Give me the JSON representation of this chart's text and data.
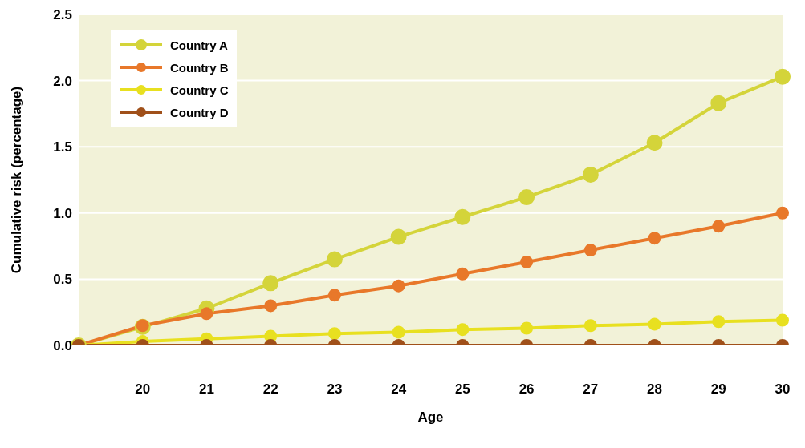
{
  "chart_data": {
    "type": "line",
    "xlabel": "Age",
    "ylabel": "Cumulative risk (percentage)",
    "categories": [
      null,
      "20",
      "21",
      "22",
      "23",
      "24",
      "25",
      "26",
      "27",
      "28",
      "29",
      "30"
    ],
    "series": [
      {
        "name": "Country A",
        "color": "#d4d43a",
        "values": [
          0,
          0.14,
          0.28,
          0.47,
          0.65,
          0.82,
          0.97,
          1.12,
          1.29,
          1.53,
          1.83,
          2.03
        ]
      },
      {
        "name": "Country B",
        "color": "#e8782a",
        "values": [
          0,
          0.15,
          0.24,
          0.3,
          0.38,
          0.45,
          0.54,
          0.63,
          0.72,
          0.81,
          0.9,
          1.0
        ]
      },
      {
        "name": "Country C",
        "color": "#e8e020",
        "values": [
          0,
          0.03,
          0.05,
          0.07,
          0.09,
          0.1,
          0.12,
          0.13,
          0.15,
          0.16,
          0.18,
          0.19
        ]
      },
      {
        "name": "Country D",
        "color": "#a0501a",
        "values": [
          0,
          0,
          0,
          0,
          0,
          0,
          0,
          0,
          0,
          0,
          0,
          0
        ]
      }
    ],
    "ylim": [
      0,
      2.5
    ],
    "yticks": [
      {
        "value": 0,
        "label": "0.0"
      },
      {
        "value": 0.5,
        "label": "0.5"
      },
      {
        "value": 1,
        "label": "1.0"
      },
      {
        "value": 1.5,
        "label": "1.5"
      },
      {
        "value": 2,
        "label": "2.0"
      },
      {
        "value": 2.5,
        "label": "2.5"
      }
    ],
    "grid": "y",
    "legend": "top left",
    "marker": "circle",
    "line_style": "solid"
  }
}
